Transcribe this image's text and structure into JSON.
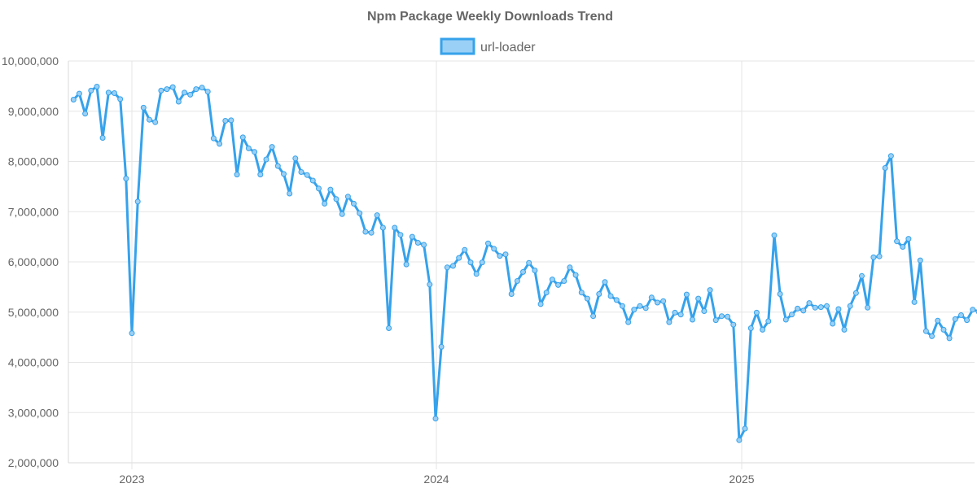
{
  "chart_data": {
    "type": "line",
    "title": "Npm Package Weekly Downloads Trend",
    "legend_position": "top-center",
    "grid": true,
    "xlabel": "",
    "ylabel": "",
    "x_range": [
      "2022-10-23",
      "2025-09-28"
    ],
    "ylim": [
      2000000,
      10000000
    ],
    "y_ticks": [
      2000000,
      3000000,
      4000000,
      5000000,
      6000000,
      7000000,
      8000000,
      9000000,
      10000000
    ],
    "y_tick_labels": [
      "2,000,000",
      "3,000,000",
      "4,000,000",
      "5,000,000",
      "6,000,000",
      "7,000,000",
      "8,000,000",
      "9,000,000",
      "10,000,000"
    ],
    "x_ticks": [
      "2023-01-01",
      "2024-01-01",
      "2025-01-01"
    ],
    "x_tick_labels": [
      "2023",
      "2024",
      "2025"
    ],
    "series": [
      {
        "name": "url-loader",
        "color": "#36a2eb",
        "fill_color": "#9ad0f5",
        "points": [
          [
            "2022-10-23",
            9230000
          ],
          [
            "2022-10-30",
            9350000
          ],
          [
            "2022-11-06",
            8950000
          ],
          [
            "2022-11-13",
            9410000
          ],
          [
            "2022-11-20",
            9490000
          ],
          [
            "2022-11-27",
            8470000
          ],
          [
            "2022-12-04",
            9370000
          ],
          [
            "2022-12-11",
            9360000
          ],
          [
            "2022-12-18",
            9240000
          ],
          [
            "2022-12-25",
            7660000
          ],
          [
            "2023-01-01",
            4580000
          ],
          [
            "2023-01-08",
            7200000
          ],
          [
            "2023-01-15",
            9070000
          ],
          [
            "2023-01-22",
            8830000
          ],
          [
            "2023-01-29",
            8780000
          ],
          [
            "2023-02-05",
            9410000
          ],
          [
            "2023-02-12",
            9440000
          ],
          [
            "2023-02-19",
            9480000
          ],
          [
            "2023-02-26",
            9190000
          ],
          [
            "2023-03-05",
            9370000
          ],
          [
            "2023-03-12",
            9330000
          ],
          [
            "2023-03-19",
            9440000
          ],
          [
            "2023-03-26",
            9470000
          ],
          [
            "2023-04-02",
            9390000
          ],
          [
            "2023-04-09",
            8460000
          ],
          [
            "2023-04-16",
            8350000
          ],
          [
            "2023-04-23",
            8810000
          ],
          [
            "2023-04-30",
            8820000
          ],
          [
            "2023-05-07",
            7740000
          ],
          [
            "2023-05-14",
            8480000
          ],
          [
            "2023-05-21",
            8260000
          ],
          [
            "2023-05-28",
            8190000
          ],
          [
            "2023-06-04",
            7740000
          ],
          [
            "2023-06-11",
            8040000
          ],
          [
            "2023-06-18",
            8290000
          ],
          [
            "2023-06-25",
            7910000
          ],
          [
            "2023-07-02",
            7750000
          ],
          [
            "2023-07-09",
            7360000
          ],
          [
            "2023-07-16",
            8060000
          ],
          [
            "2023-07-23",
            7790000
          ],
          [
            "2023-07-30",
            7730000
          ],
          [
            "2023-08-06",
            7620000
          ],
          [
            "2023-08-13",
            7460000
          ],
          [
            "2023-08-20",
            7160000
          ],
          [
            "2023-08-27",
            7440000
          ],
          [
            "2023-09-03",
            7250000
          ],
          [
            "2023-09-10",
            6950000
          ],
          [
            "2023-09-17",
            7300000
          ],
          [
            "2023-09-24",
            7160000
          ],
          [
            "2023-10-01",
            6970000
          ],
          [
            "2023-10-08",
            6600000
          ],
          [
            "2023-10-15",
            6580000
          ],
          [
            "2023-10-22",
            6930000
          ],
          [
            "2023-10-29",
            6680000
          ],
          [
            "2023-11-05",
            4680000
          ],
          [
            "2023-11-12",
            6680000
          ],
          [
            "2023-11-19",
            6540000
          ],
          [
            "2023-11-26",
            5950000
          ],
          [
            "2023-12-03",
            6500000
          ],
          [
            "2023-12-10",
            6380000
          ],
          [
            "2023-12-17",
            6340000
          ],
          [
            "2023-12-24",
            5550000
          ],
          [
            "2023-12-31",
            2880000
          ],
          [
            "2024-01-07",
            4310000
          ],
          [
            "2024-01-14",
            5890000
          ],
          [
            "2024-01-21",
            5920000
          ],
          [
            "2024-01-28",
            6080000
          ],
          [
            "2024-02-04",
            6240000
          ],
          [
            "2024-02-11",
            5990000
          ],
          [
            "2024-02-18",
            5760000
          ],
          [
            "2024-02-25",
            5990000
          ],
          [
            "2024-03-03",
            6370000
          ],
          [
            "2024-03-10",
            6260000
          ],
          [
            "2024-03-17",
            6120000
          ],
          [
            "2024-03-24",
            6150000
          ],
          [
            "2024-03-31",
            5360000
          ],
          [
            "2024-04-07",
            5620000
          ],
          [
            "2024-04-14",
            5800000
          ],
          [
            "2024-04-21",
            5980000
          ],
          [
            "2024-04-28",
            5830000
          ],
          [
            "2024-05-05",
            5160000
          ],
          [
            "2024-05-12",
            5390000
          ],
          [
            "2024-05-19",
            5650000
          ],
          [
            "2024-05-26",
            5540000
          ],
          [
            "2024-06-02",
            5620000
          ],
          [
            "2024-06-09",
            5890000
          ],
          [
            "2024-06-16",
            5740000
          ],
          [
            "2024-06-23",
            5390000
          ],
          [
            "2024-06-30",
            5270000
          ],
          [
            "2024-07-07",
            4920000
          ],
          [
            "2024-07-14",
            5360000
          ],
          [
            "2024-07-21",
            5600000
          ],
          [
            "2024-07-28",
            5320000
          ],
          [
            "2024-08-04",
            5240000
          ],
          [
            "2024-08-11",
            5120000
          ],
          [
            "2024-08-18",
            4800000
          ],
          [
            "2024-08-25",
            5050000
          ],
          [
            "2024-09-01",
            5120000
          ],
          [
            "2024-09-08",
            5080000
          ],
          [
            "2024-09-15",
            5290000
          ],
          [
            "2024-09-22",
            5190000
          ],
          [
            "2024-09-29",
            5220000
          ],
          [
            "2024-10-06",
            4800000
          ],
          [
            "2024-10-13",
            4990000
          ],
          [
            "2024-10-20",
            4950000
          ],
          [
            "2024-10-27",
            5350000
          ],
          [
            "2024-11-03",
            4850000
          ],
          [
            "2024-11-10",
            5270000
          ],
          [
            "2024-11-17",
            5020000
          ],
          [
            "2024-11-24",
            5440000
          ],
          [
            "2024-12-01",
            4840000
          ],
          [
            "2024-12-08",
            4920000
          ],
          [
            "2024-12-15",
            4910000
          ],
          [
            "2024-12-22",
            4750000
          ],
          [
            "2024-12-29",
            2450000
          ],
          [
            "2025-01-05",
            2680000
          ],
          [
            "2025-01-12",
            4680000
          ],
          [
            "2025-01-19",
            4990000
          ],
          [
            "2025-01-26",
            4650000
          ],
          [
            "2025-02-02",
            4820000
          ],
          [
            "2025-02-09",
            6530000
          ],
          [
            "2025-02-16",
            5360000
          ],
          [
            "2025-02-23",
            4850000
          ],
          [
            "2025-03-02",
            4950000
          ],
          [
            "2025-03-09",
            5070000
          ],
          [
            "2025-03-16",
            5030000
          ],
          [
            "2025-03-23",
            5180000
          ],
          [
            "2025-03-30",
            5090000
          ],
          [
            "2025-04-06",
            5100000
          ],
          [
            "2025-04-13",
            5120000
          ],
          [
            "2025-04-20",
            4770000
          ],
          [
            "2025-04-27",
            5060000
          ],
          [
            "2025-05-04",
            4650000
          ],
          [
            "2025-05-11",
            5120000
          ],
          [
            "2025-05-18",
            5380000
          ],
          [
            "2025-05-25",
            5720000
          ],
          [
            "2025-06-01",
            5090000
          ],
          [
            "2025-06-08",
            6090000
          ],
          [
            "2025-06-15",
            6110000
          ],
          [
            "2025-06-22",
            7870000
          ],
          [
            "2025-06-29",
            8110000
          ],
          [
            "2025-07-06",
            6410000
          ],
          [
            "2025-07-13",
            6300000
          ],
          [
            "2025-07-20",
            6460000
          ],
          [
            "2025-07-27",
            5200000
          ],
          [
            "2025-08-03",
            6030000
          ],
          [
            "2025-08-10",
            4620000
          ],
          [
            "2025-08-17",
            4520000
          ],
          [
            "2025-08-24",
            4830000
          ],
          [
            "2025-08-31",
            4650000
          ],
          [
            "2025-09-07",
            4480000
          ],
          [
            "2025-09-14",
            4860000
          ],
          [
            "2025-09-21",
            4940000
          ],
          [
            "2025-09-28",
            4840000
          ],
          [
            "2025-10-05",
            5050000
          ],
          [
            "2025-10-12",
            5010000
          ]
        ]
      }
    ]
  }
}
